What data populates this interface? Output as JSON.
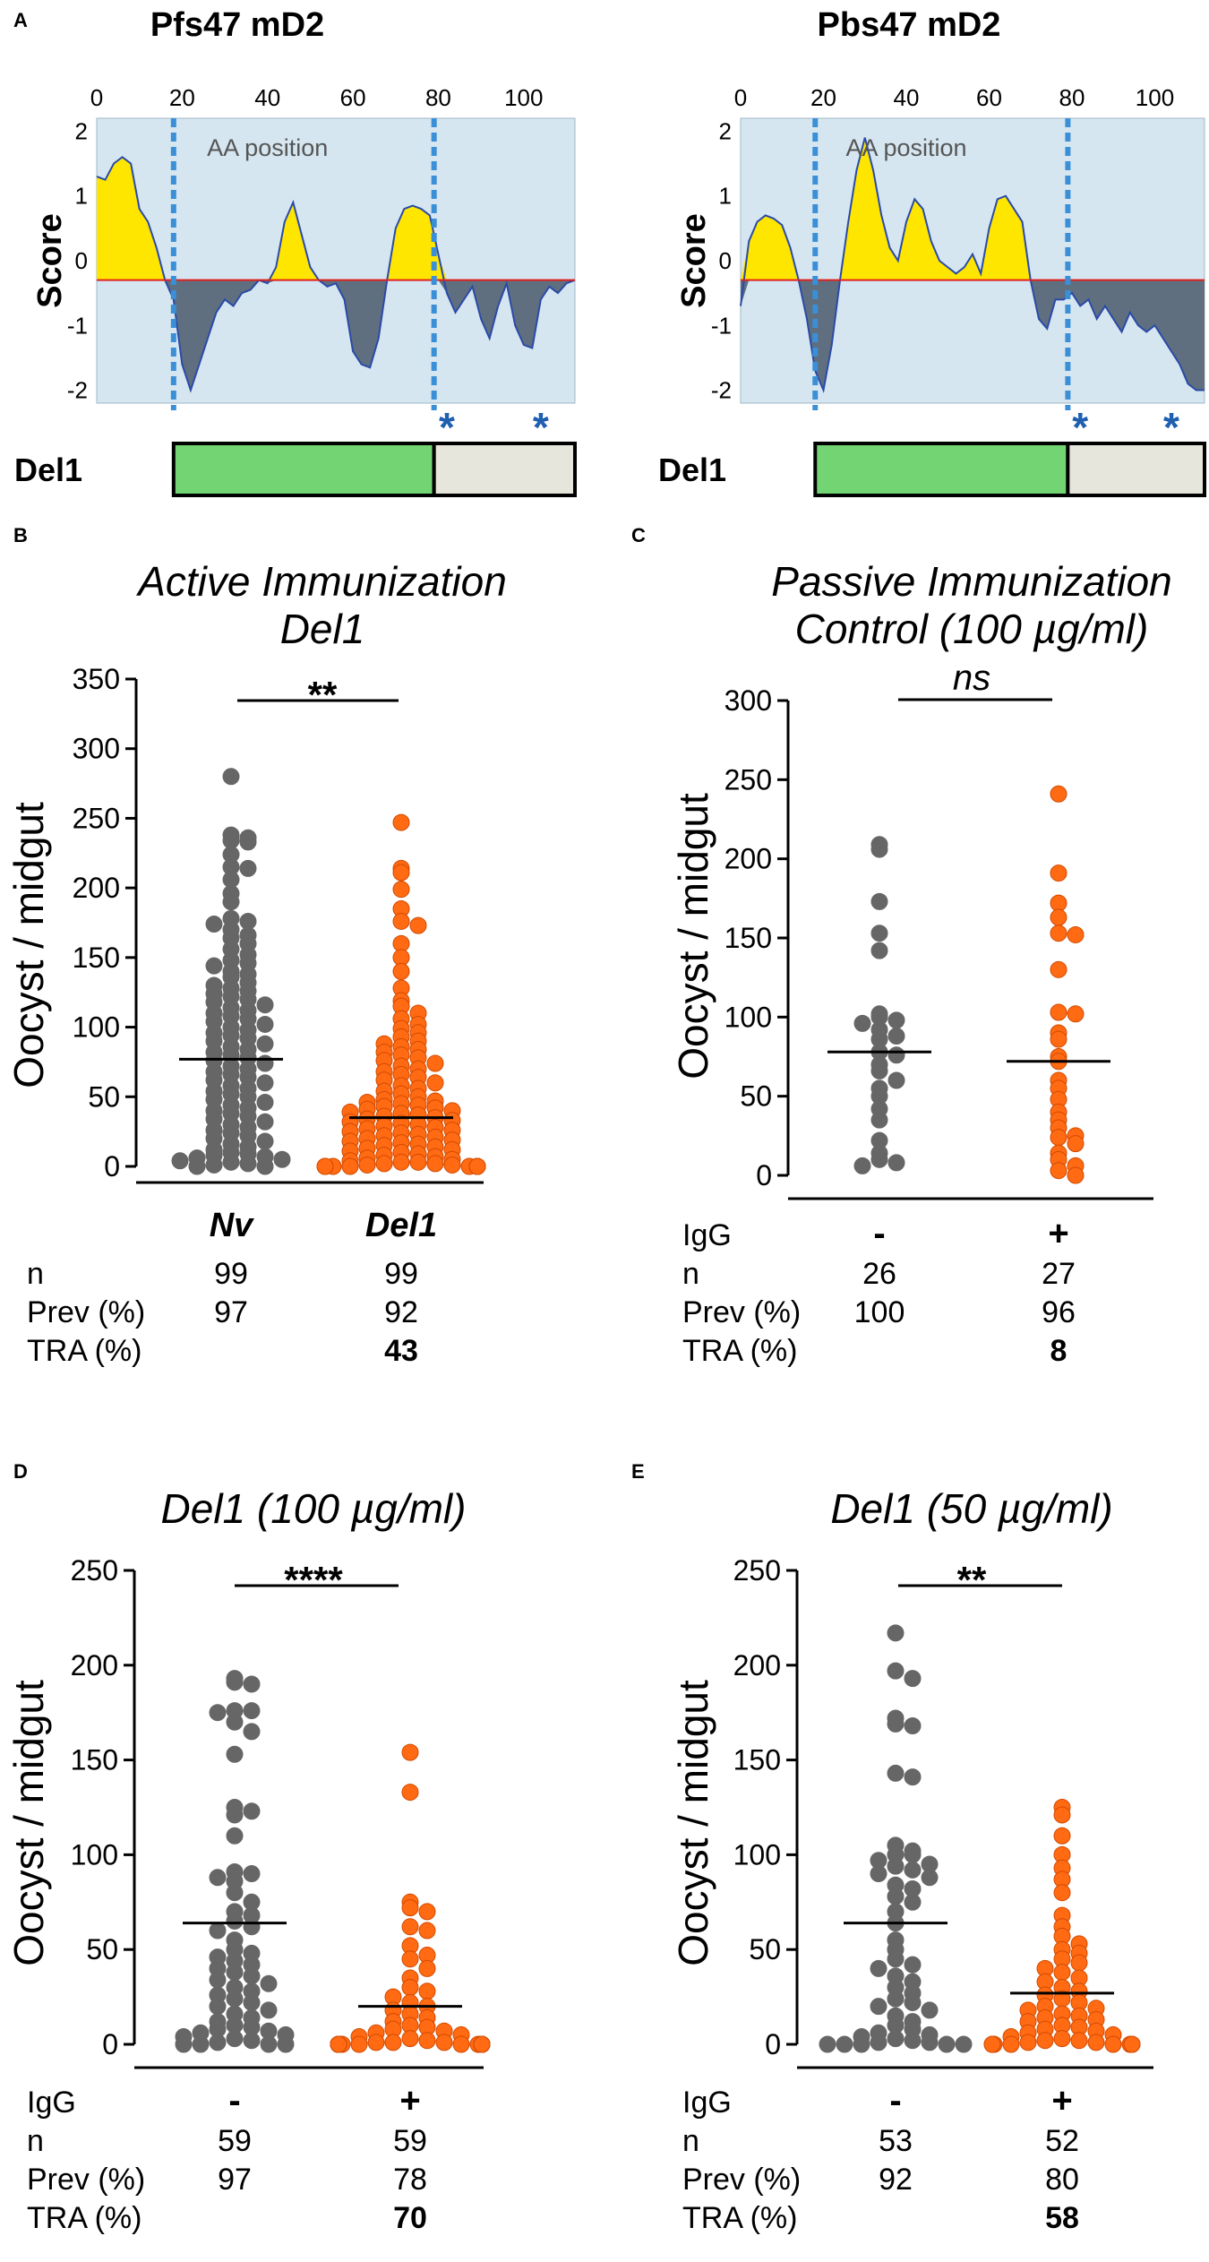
{
  "colors": {
    "plotBg": "#d6e6f0",
    "positive": "#ffe600",
    "negative": "#5f6f7f",
    "line": "#2a4aa8",
    "zeroLine": "#e02020",
    "dashed": "#3a8fd6",
    "delGreen": "#72d472",
    "delGrey": "#e6e6dc",
    "asterisk": "#1f5fb0",
    "dotGrey": "#666666",
    "dotOrange": "#ff6a13",
    "dotOrangeEdge": "#d24a00"
  },
  "panelA": {
    "letter": "A",
    "legend_ylabel": "Score",
    "del_label": "Del1",
    "asterisk": "*"
  },
  "panelB": {
    "letter": "B",
    "title1": "Active Immunization",
    "title2": "Del1",
    "ylabel": "Oocyst / midgut",
    "sig": "**",
    "rows": [
      {
        "label": "n",
        "c1": "99",
        "c2": "99"
      },
      {
        "label": "Prev (%)",
        "c1": "97",
        "c2": "92"
      },
      {
        "label": "TRA (%)",
        "c1": "",
        "c2": "43"
      }
    ]
  },
  "panelC": {
    "letter": "C",
    "title1": "Passive Immunization",
    "title2": "Control (100 µg/ml)",
    "ylabel": "Oocyst / midgut",
    "sig": "ns",
    "rows": [
      {
        "label": "IgG",
        "c1": "-",
        "c2": "+"
      },
      {
        "label": "n",
        "c1": "26",
        "c2": "27"
      },
      {
        "label": "Prev (%)",
        "c1": "100",
        "c2": "96"
      },
      {
        "label": "TRA (%)",
        "c1": "",
        "c2": "8"
      }
    ]
  },
  "panelD": {
    "letter": "D",
    "title1": "Del1 (100 µg/ml)",
    "ylabel": "Oocyst / midgut",
    "sig": "****",
    "rows": [
      {
        "label": "IgG",
        "c1": "-",
        "c2": "+"
      },
      {
        "label": "n",
        "c1": "59",
        "c2": "59"
      },
      {
        "label": "Prev (%)",
        "c1": "97",
        "c2": "78"
      },
      {
        "label": "TRA (%)",
        "c1": "",
        "c2": "70"
      }
    ]
  },
  "panelE": {
    "letter": "E",
    "title1": "Del1 (50 µg/ml)",
    "ylabel": "Oocyst / midgut",
    "sig": "**",
    "rows": [
      {
        "label": "IgG",
        "c1": "-",
        "c2": "+"
      },
      {
        "label": "n",
        "c1": "53",
        "c2": "52"
      },
      {
        "label": "Prev (%)",
        "c1": "92",
        "c2": "80"
      },
      {
        "label": "TRA (%)",
        "c1": "",
        "c2": "58"
      }
    ]
  },
  "chart_data": [
    {
      "id": "A1",
      "type": "area",
      "title": "Pfs47 mD2",
      "xlabel": "AA position",
      "ylabel": "Score",
      "xlim": [
        0,
        112
      ],
      "ylim": [
        -2.2,
        2.2
      ],
      "xticks": [
        0,
        20,
        40,
        60,
        80,
        100
      ],
      "yticks": [
        2,
        1,
        0,
        -1,
        -2
      ],
      "xtick_labels": [
        "0",
        "20",
        "40",
        "60",
        "80",
        "100"
      ],
      "ytick_labels": [
        "2",
        "1",
        "0",
        "-1",
        "-2"
      ],
      "cutoff": -0.3,
      "dashed_at": [
        18,
        79
      ],
      "del_split": 79,
      "asterisks_at": [
        82,
        104
      ],
      "x": [
        0,
        2,
        4,
        6,
        8,
        10,
        12,
        14,
        16,
        18,
        20,
        22,
        24,
        26,
        28,
        30,
        32,
        34,
        36,
        38,
        40,
        42,
        44,
        46,
        48,
        50,
        52,
        54,
        56,
        58,
        60,
        62,
        64,
        66,
        68,
        70,
        72,
        74,
        76,
        78,
        80,
        82,
        84,
        86,
        88,
        90,
        92,
        94,
        96,
        98,
        100,
        102,
        104,
        106,
        108,
        110,
        112
      ],
      "score": [
        1.3,
        1.25,
        1.5,
        1.6,
        1.5,
        0.8,
        0.6,
        0.2,
        -0.3,
        -0.6,
        -1.6,
        -2.0,
        -1.6,
        -1.2,
        -0.8,
        -0.6,
        -0.7,
        -0.5,
        -0.45,
        -0.3,
        -0.35,
        -0.1,
        0.6,
        0.9,
        0.4,
        -0.1,
        -0.3,
        -0.4,
        -0.35,
        -0.6,
        -1.4,
        -1.6,
        -1.65,
        -1.2,
        -0.3,
        0.5,
        0.8,
        0.85,
        0.8,
        0.7,
        0.1,
        -0.5,
        -0.8,
        -0.6,
        -0.4,
        -0.9,
        -1.2,
        -0.7,
        -0.35,
        -1.0,
        -1.3,
        -1.35,
        -0.6,
        -0.4,
        -0.5,
        -0.35,
        -0.3
      ]
    },
    {
      "id": "A2",
      "type": "area",
      "title": "Pbs47 mD2",
      "xlabel": "AA position",
      "ylabel": "Score",
      "xlim": [
        0,
        112
      ],
      "ylim": [
        -2.2,
        2.2
      ],
      "xticks": [
        0,
        20,
        40,
        60,
        80,
        100
      ],
      "yticks": [
        2,
        1,
        0,
        -1,
        -2
      ],
      "xtick_labels": [
        "0",
        "20",
        "40",
        "60",
        "80",
        "100"
      ],
      "ytick_labels": [
        "2",
        "1",
        "0",
        "-1",
        "-2"
      ],
      "cutoff": -0.3,
      "dashed_at": [
        18,
        79
      ],
      "del_split": 79,
      "asterisks_at": [
        82,
        104
      ],
      "x": [
        0,
        2,
        4,
        6,
        8,
        10,
        12,
        14,
        16,
        18,
        20,
        22,
        24,
        26,
        28,
        30,
        32,
        34,
        36,
        38,
        40,
        42,
        44,
        46,
        48,
        50,
        52,
        54,
        56,
        58,
        60,
        62,
        64,
        66,
        68,
        70,
        72,
        74,
        76,
        78,
        80,
        82,
        84,
        86,
        88,
        90,
        92,
        94,
        96,
        98,
        100,
        102,
        104,
        106,
        108,
        110,
        112
      ],
      "score": [
        -0.7,
        0.3,
        0.6,
        0.7,
        0.65,
        0.55,
        0.2,
        -0.3,
        -0.9,
        -1.7,
        -2.0,
        -1.3,
        -0.3,
        0.6,
        1.4,
        1.9,
        1.4,
        0.7,
        0.2,
        0.0,
        0.6,
        0.95,
        0.8,
        0.3,
        0.0,
        -0.1,
        -0.2,
        -0.1,
        0.1,
        -0.2,
        0.5,
        0.95,
        1.0,
        0.8,
        0.6,
        -0.3,
        -0.9,
        -1.05,
        -0.6,
        -0.6,
        -0.5,
        -0.7,
        -0.6,
        -0.9,
        -0.7,
        -0.9,
        -1.1,
        -0.8,
        -1.0,
        -1.1,
        -1.0,
        -1.2,
        -1.4,
        -1.6,
        -1.9,
        -2.0,
        -2.0
      ]
    },
    {
      "id": "B",
      "type": "scatter",
      "title": "Active Immunization Del1",
      "ylabel": "Oocyst / midgut",
      "ylim": [
        0,
        350
      ],
      "yticks": [
        0,
        50,
        100,
        150,
        200,
        250,
        300,
        350
      ],
      "ytick_labels": [
        "0",
        "50",
        "100",
        "150",
        "200",
        "250",
        "300",
        "350"
      ],
      "categories": [
        "Nv",
        "Del1"
      ],
      "medians": [
        77,
        35
      ],
      "series": [
        {
          "name": "Nv",
          "values": [
            280,
            238,
            236,
            234,
            233,
            224,
            215,
            214,
            206,
            196,
            190,
            178,
            176,
            174,
            170,
            166,
            164,
            160,
            156,
            152,
            148,
            146,
            144,
            140,
            138,
            136,
            132,
            130,
            128,
            126,
            124,
            122,
            120,
            118,
            116,
            114,
            112,
            110,
            108,
            106,
            104,
            102,
            100,
            98,
            96,
            94,
            92,
            90,
            88,
            86,
            84,
            82,
            80,
            78,
            76,
            74,
            72,
            70,
            68,
            66,
            64,
            62,
            60,
            58,
            56,
            54,
            52,
            50,
            48,
            46,
            44,
            42,
            40,
            38,
            36,
            34,
            32,
            30,
            28,
            26,
            24,
            22,
            20,
            18,
            16,
            14,
            12,
            10,
            9,
            8,
            7,
            6,
            5,
            4,
            3,
            2,
            1,
            0,
            0
          ]
        },
        {
          "name": "Del1",
          "values": [
            247,
            214,
            211,
            199,
            185,
            176,
            173,
            160,
            150,
            140,
            128,
            119,
            115,
            110,
            106,
            102,
            99,
            96,
            93,
            90,
            88,
            86,
            84,
            82,
            80,
            78,
            76,
            74,
            72,
            70,
            68,
            66,
            64,
            62,
            60,
            58,
            56,
            54,
            52,
            50,
            48,
            47,
            46,
            45,
            44,
            43,
            42,
            41,
            40,
            39,
            38,
            37,
            36,
            35,
            34,
            33,
            32,
            31,
            30,
            29,
            28,
            27,
            26,
            25,
            24,
            23,
            22,
            21,
            20,
            19,
            18,
            17,
            16,
            15,
            14,
            13,
            12,
            11,
            10,
            9,
            8,
            7,
            6,
            5,
            4,
            3,
            3,
            2,
            2,
            1,
            1,
            0,
            0,
            0,
            0,
            0,
            0,
            0,
            0
          ]
        }
      ]
    },
    {
      "id": "C",
      "type": "scatter",
      "title": "Passive Immunization Control (100 µg/ml)",
      "ylabel": "Oocyst / midgut",
      "ylim": [
        0,
        300
      ],
      "yticks": [
        0,
        50,
        100,
        150,
        200,
        250,
        300
      ],
      "ytick_labels": [
        "0",
        "50",
        "100",
        "150",
        "200",
        "250",
        "300"
      ],
      "categories": [
        "-",
        "+"
      ],
      "medians": [
        78,
        72
      ],
      "series": [
        {
          "name": "-",
          "values": [
            209,
            206,
            173,
            153,
            142,
            102,
            100,
            98,
            96,
            92,
            88,
            86,
            78,
            76,
            70,
            66,
            60,
            55,
            50,
            42,
            35,
            22,
            14,
            10,
            8,
            6
          ]
        },
        {
          "name": "+",
          "values": [
            241,
            191,
            172,
            163,
            153,
            152,
            130,
            103,
            102,
            90,
            86,
            75,
            72,
            60,
            55,
            48,
            40,
            35,
            30,
            25,
            24,
            20,
            14,
            10,
            6,
            3,
            0
          ]
        }
      ]
    },
    {
      "id": "D",
      "type": "scatter",
      "title": "Del1 (100 µg/ml)",
      "ylabel": "Oocyst / midgut",
      "ylim": [
        0,
        250
      ],
      "yticks": [
        0,
        50,
        100,
        150,
        200,
        250
      ],
      "ytick_labels": [
        "0",
        "50",
        "100",
        "150",
        "200",
        "250"
      ],
      "categories": [
        "-",
        "+"
      ],
      "medians": [
        64,
        20
      ],
      "series": [
        {
          "name": "-",
          "values": [
            193,
            191,
            190,
            176,
            176,
            175,
            170,
            165,
            153,
            125,
            123,
            121,
            110,
            91,
            90,
            88,
            86,
            80,
            75,
            70,
            68,
            65,
            62,
            60,
            55,
            50,
            48,
            46,
            44,
            42,
            40,
            38,
            36,
            34,
            32,
            30,
            28,
            26,
            24,
            22,
            20,
            18,
            16,
            14,
            12,
            10,
            9,
            8,
            7,
            6,
            5,
            4,
            3,
            2,
            1,
            0,
            0,
            0,
            0
          ]
        },
        {
          "name": "+",
          "values": [
            154,
            133,
            75,
            72,
            70,
            62,
            60,
            52,
            47,
            45,
            40,
            35,
            30,
            28,
            25,
            22,
            20,
            18,
            16,
            14,
            12,
            10,
            9,
            8,
            7,
            6,
            5,
            4,
            3,
            2,
            1,
            1,
            1,
            0,
            0,
            0,
            0,
            0,
            0,
            0,
            0,
            0,
            0,
            0,
            0,
            0,
            0,
            0,
            0,
            0,
            0,
            0,
            0,
            0,
            0,
            0,
            0,
            0,
            0
          ]
        }
      ]
    },
    {
      "id": "E",
      "type": "scatter",
      "title": "Del1 (50 µg/ml)",
      "ylabel": "Oocyst / midgut",
      "ylim": [
        0,
        250
      ],
      "yticks": [
        0,
        50,
        100,
        150,
        200,
        250
      ],
      "ytick_labels": [
        "0",
        "50",
        "100",
        "150",
        "200",
        "250"
      ],
      "categories": [
        "-",
        "+"
      ],
      "medians": [
        64,
        27
      ],
      "series": [
        {
          "name": "-",
          "values": [
            217,
            197,
            193,
            172,
            169,
            168,
            143,
            141,
            105,
            102,
            100,
            100,
            97,
            95,
            94,
            92,
            90,
            88,
            84,
            82,
            78,
            75,
            70,
            64,
            55,
            50,
            45,
            42,
            40,
            36,
            33,
            30,
            27,
            24,
            22,
            20,
            18,
            15,
            12,
            10,
            8,
            6,
            5,
            4,
            3,
            2,
            1,
            1,
            0,
            0,
            0,
            0,
            0
          ]
        },
        {
          "name": "+",
          "values": [
            125,
            121,
            110,
            100,
            93,
            87,
            80,
            68,
            62,
            57,
            53,
            50,
            48,
            45,
            43,
            40,
            38,
            35,
            33,
            30,
            28,
            26,
            24,
            22,
            20,
            19,
            18,
            16,
            15,
            14,
            13,
            12,
            10,
            9,
            8,
            7,
            6,
            5,
            4,
            3,
            2,
            2,
            1,
            1,
            0,
            0,
            0,
            0,
            0,
            0,
            0,
            0
          ]
        }
      ]
    }
  ]
}
